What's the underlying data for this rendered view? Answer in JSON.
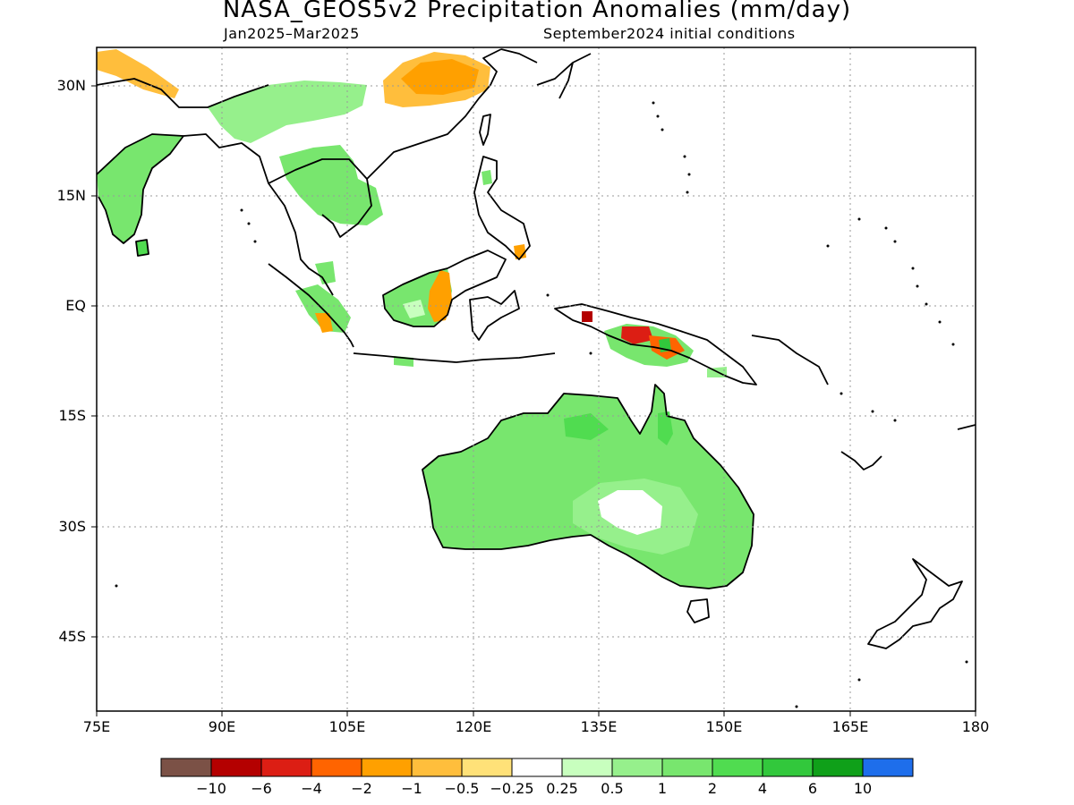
{
  "title": "NASA_GEOS5v2 Precipitation Anomalies (mm/day)",
  "subtitle_left": "Jan2025–Mar2025",
  "subtitle_right": "September2024 initial conditions",
  "lat_labels": [
    "30N",
    "15N",
    "EQ",
    "15S",
    "30S",
    "45S"
  ],
  "lon_labels": [
    "75E",
    "90E",
    "105E",
    "120E",
    "135E",
    "150E",
    "165E",
    "180"
  ],
  "colorbar": {
    "colors": [
      "#7b5146",
      "#b40000",
      "#dc1e14",
      "#ff6400",
      "#ffa000",
      "#ffbe3c",
      "#ffe178",
      "#ffffff",
      "#c8ffbe",
      "#96f08c",
      "#78e66e",
      "#50dc50",
      "#32c83c",
      "#0fa019",
      "#1e6eeb"
    ],
    "labels": [
      "−10",
      "−6",
      "−4",
      "−2",
      "−1",
      "−0.5",
      "−0.25",
      "0.25",
      "0.5",
      "1",
      "2",
      "4",
      "6",
      "10"
    ]
  }
}
